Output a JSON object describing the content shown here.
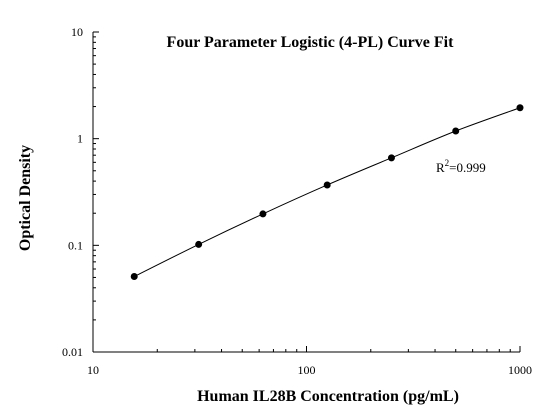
{
  "chart_data": {
    "type": "scatter",
    "title": "Four Parameter Logistic (4-PL) Curve Fit",
    "xlabel": "Human IL28B Concentration (pg/mL)",
    "ylabel": "Optical Density",
    "x_scale": "log",
    "y_scale": "log",
    "xlim": [
      10,
      1000
    ],
    "ylim": [
      0.01,
      10
    ],
    "x_ticks": [
      "10",
      "100",
      "1000"
    ],
    "y_ticks": [
      "0.01",
      "0.1",
      "1",
      "10"
    ],
    "grid": false,
    "legend": "none",
    "series": [
      {
        "x": [
          15.6,
          31.25,
          62.5,
          125,
          250,
          500,
          1000
        ],
        "y": [
          0.051,
          0.102,
          0.197,
          0.368,
          0.661,
          1.18,
          1.95
        ]
      }
    ],
    "fit_curve": "4-PL",
    "annotation": {
      "prefix": "R",
      "superscript": "2",
      "suffix": "=0.999"
    },
    "colors": {
      "axis": "#000000",
      "marker": "#000000",
      "curve": "#000000"
    }
  }
}
